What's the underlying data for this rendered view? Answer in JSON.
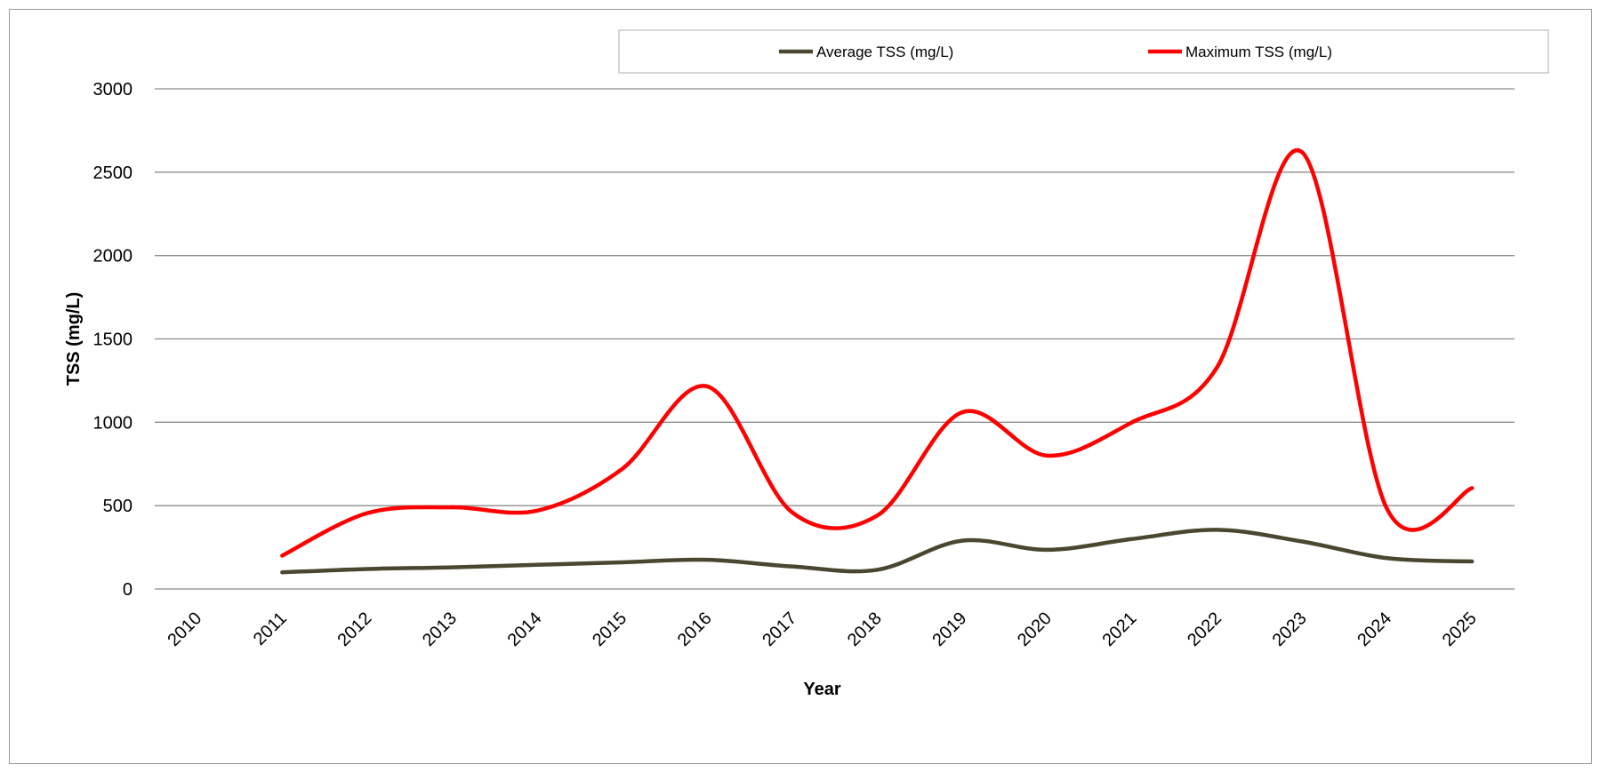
{
  "chart_data": {
    "type": "line",
    "xlabel": "Year",
    "ylabel": "TSS (mg/L)",
    "categories": [
      "2010",
      "2011",
      "2012",
      "2013",
      "2014",
      "2015",
      "2016",
      "2017",
      "2018",
      "2019",
      "2020",
      "2021",
      "2022",
      "2023",
      "2024",
      "2025"
    ],
    "ylim": [
      0,
      3000
    ],
    "yticks": [
      0,
      500,
      1000,
      1500,
      2000,
      2500,
      3000
    ],
    "grid": "horizontal",
    "legend_position": "top",
    "smooth": true,
    "series": [
      {
        "name": "Average TSS (mg/L)",
        "color": "#4a4630",
        "values": [
          null,
          100,
          120,
          130,
          145,
          160,
          175,
          135,
          115,
          290,
          235,
          300,
          355,
          285,
          185,
          165
        ]
      },
      {
        "name": "Maximum TSS (mg/L)",
        "color": "#ff0000",
        "values": [
          null,
          200,
          455,
          490,
          470,
          720,
          1215,
          460,
          440,
          1060,
          800,
          1000,
          1330,
          2620,
          480,
          605
        ]
      }
    ]
  }
}
